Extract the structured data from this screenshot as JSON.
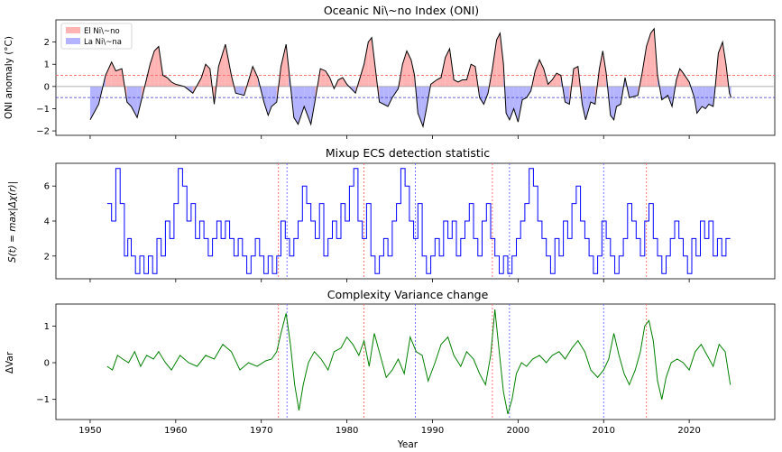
{
  "chart_data": [
    {
      "type": "area",
      "title": "Oceanic Ni\\~no Index (ONI)",
      "ylabel": "ONI anomaly ($^\\circ$C)",
      "xlim": [
        1946,
        2030
      ],
      "ylim": [
        -2.2,
        3.0
      ],
      "yticks": [
        -2,
        -1,
        0,
        1,
        2
      ],
      "thresholds": [
        0.5,
        -0.5
      ],
      "legend": {
        "placement": "top-left",
        "entries": [
          {
            "label": "El Ni\\~no",
            "color": "#ffb3b3"
          },
          {
            "label": "La Ni\\~na",
            "color": "#b3b3ff"
          }
        ]
      },
      "series": [
        {
          "x": [
            1950.0,
            1951.0,
            1951.8,
            1952.5,
            1953.0,
            1953.7,
            1954.3,
            1954.8,
            1955.5,
            1956.0,
            1957.0,
            1957.5,
            1958.0,
            1958.5,
            1959.0,
            1959.5,
            1960.0,
            1961.0,
            1962.0,
            1963.0,
            1963.5,
            1964.0,
            1964.5,
            1965.0,
            1965.8,
            1966.5,
            1967.0,
            1968.0,
            1969.0,
            1969.6,
            1970.3,
            1970.8,
            1971.2,
            1971.8,
            1972.3,
            1972.9,
            1973.2,
            1973.8,
            1974.3,
            1975.0,
            1975.8,
            1976.3,
            1976.9,
            1977.5,
            1978.0,
            1978.5,
            1979.0,
            1979.5,
            1980.0,
            1981.0,
            1982.0,
            1982.5,
            1982.9,
            1983.3,
            1983.8,
            1984.3,
            1984.8,
            1985.3,
            1986.0,
            1986.5,
            1987.0,
            1987.5,
            1987.9,
            1988.3,
            1988.7,
            1988.9,
            1989.3,
            1989.8,
            1990.5,
            1991.0,
            1991.5,
            1992.0,
            1992.5,
            1993.0,
            1993.5,
            1994.0,
            1994.5,
            1995.0,
            1995.5,
            1996.0,
            1996.5,
            1997.0,
            1997.5,
            1997.9,
            1998.3,
            1998.6,
            1999.0,
            1999.5,
            2000.0,
            2000.5,
            2001.0,
            2001.5,
            2002.0,
            2002.5,
            2003.0,
            2003.5,
            2004.0,
            2004.5,
            2005.0,
            2005.5,
            2006.0,
            2006.5,
            2007.0,
            2007.5,
            2007.9,
            2008.5,
            2009.0,
            2009.5,
            2009.9,
            2010.3,
            2010.8,
            2011.2,
            2011.5,
            2012.0,
            2012.5,
            2013.0,
            2014.0,
            2014.5,
            2015.0,
            2015.5,
            2015.9,
            2016.3,
            2016.8,
            2017.5,
            2018.0,
            2018.5,
            2018.9,
            2019.3,
            2020.0,
            2020.6,
            2020.9,
            2021.5,
            2021.9,
            2022.3,
            2022.8,
            2023.0,
            2023.4,
            2023.9,
            2024.3,
            2024.7,
            2024.9
          ],
          "values": [
            -1.5,
            -0.8,
            0.5,
            1.1,
            0.7,
            0.8,
            -0.7,
            -0.9,
            -1.4,
            -0.6,
            1.0,
            1.6,
            1.8,
            0.5,
            0.4,
            0.2,
            0.1,
            0.0,
            -0.3,
            0.4,
            1.0,
            0.8,
            -0.8,
            0.9,
            1.9,
            0.5,
            -0.3,
            -0.4,
            0.9,
            0.4,
            -0.7,
            -1.3,
            -0.9,
            -0.7,
            0.9,
            1.9,
            0.8,
            -1.4,
            -1.7,
            -0.9,
            -1.7,
            -0.6,
            0.8,
            0.7,
            0.4,
            -0.1,
            0.3,
            0.4,
            0.1,
            -0.3,
            1.0,
            2.0,
            2.2,
            0.9,
            -0.7,
            -0.8,
            -0.9,
            -0.5,
            -0.1,
            1.0,
            1.6,
            1.2,
            0.5,
            -1.2,
            -1.6,
            -1.8,
            -1.0,
            0.1,
            0.3,
            0.4,
            1.3,
            1.7,
            0.3,
            0.2,
            0.3,
            0.3,
            1.0,
            0.9,
            -0.5,
            -0.8,
            -0.3,
            0.8,
            2.1,
            2.4,
            1.0,
            -1.2,
            -1.5,
            -1.0,
            -1.6,
            -0.6,
            -0.5,
            -0.2,
            0.7,
            1.2,
            0.8,
            0.1,
            0.3,
            0.6,
            0.5,
            -0.7,
            -0.8,
            0.8,
            0.9,
            -0.8,
            -1.5,
            -0.7,
            -0.8,
            0.8,
            1.6,
            0.6,
            -1.3,
            -1.5,
            -0.9,
            -0.8,
            0.4,
            -0.5,
            -0.4,
            0.6,
            1.8,
            2.4,
            2.6,
            0.5,
            -0.6,
            -0.4,
            -0.9,
            0.3,
            0.8,
            0.6,
            0.2,
            -0.5,
            -1.2,
            -0.9,
            -1.0,
            -0.8,
            -0.9,
            -0.2,
            1.5,
            2.0,
            1.0,
            -0.3,
            -0.5
          ]
        }
      ]
    },
    {
      "type": "line",
      "title": "Mixup ECS detection statistic",
      "ylabel": "$S(t) = \\max_{\\mathcal{S}}|\\Delta\\chi(r)|$",
      "xlim": [
        1946,
        2030
      ],
      "ylim": [
        0.7,
        7.3
      ],
      "yticks": [
        2,
        4,
        6
      ],
      "red_markers": [
        1972.0,
        1982.0,
        1997.0,
        2015.0
      ],
      "blue_markers": [
        1973.0,
        1988.0,
        1999.0,
        2010.0
      ],
      "series": [
        {
          "color": "#0000ff",
          "x": [
            1952.0,
            1952.5,
            1953.0,
            1953.5,
            1954.0,
            1954.4,
            1954.8,
            1955.3,
            1955.8,
            1956.3,
            1956.8,
            1957.3,
            1957.8,
            1958.3,
            1958.8,
            1959.3,
            1959.8,
            1960.3,
            1960.8,
            1961.3,
            1961.8,
            1962.3,
            1962.8,
            1963.3,
            1963.8,
            1964.3,
            1964.8,
            1965.3,
            1965.8,
            1966.3,
            1966.8,
            1967.3,
            1967.8,
            1968.3,
            1968.8,
            1969.3,
            1969.8,
            1970.3,
            1970.8,
            1971.3,
            1971.8,
            1972.3,
            1972.8,
            1973.3,
            1973.8,
            1974.3,
            1974.8,
            1975.3,
            1975.8,
            1976.3,
            1976.8,
            1977.3,
            1977.8,
            1978.3,
            1978.8,
            1979.3,
            1979.8,
            1980.3,
            1980.8,
            1981.3,
            1981.8,
            1982.3,
            1982.8,
            1983.3,
            1983.8,
            1984.3,
            1984.8,
            1985.3,
            1985.8,
            1986.3,
            1986.8,
            1987.3,
            1987.8,
            1988.3,
            1988.8,
            1989.3,
            1989.8,
            1990.3,
            1990.8,
            1991.3,
            1991.8,
            1992.3,
            1992.8,
            1993.3,
            1993.8,
            1994.3,
            1994.8,
            1995.3,
            1995.8,
            1996.3,
            1996.8,
            1997.3,
            1997.8,
            1998.3,
            1998.8,
            1999.3,
            1999.8,
            2000.3,
            2000.8,
            2001.3,
            2001.8,
            2002.3,
            2002.8,
            2003.3,
            2003.8,
            2004.3,
            2004.8,
            2005.3,
            2005.8,
            2006.3,
            2006.8,
            2007.3,
            2007.8,
            2008.3,
            2008.8,
            2009.3,
            2009.8,
            2010.3,
            2010.8,
            2011.3,
            2011.8,
            2012.3,
            2012.8,
            2013.3,
            2013.8,
            2014.3,
            2014.8,
            2015.3,
            2015.8,
            2016.3,
            2016.8,
            2017.3,
            2017.8,
            2018.3,
            2018.8,
            2019.3,
            2019.8,
            2020.3,
            2020.8,
            2021.3,
            2021.8,
            2022.3,
            2022.8,
            2023.3,
            2023.8,
            2024.3,
            2024.8
          ],
          "values": [
            5,
            4,
            7,
            5,
            2,
            3,
            2,
            1,
            2,
            1,
            2,
            1,
            3,
            2,
            4,
            3,
            5,
            7,
            6,
            4,
            5,
            3,
            4,
            3,
            2,
            3,
            4,
            3,
            4,
            3,
            2,
            3,
            2,
            1,
            2,
            3,
            2,
            1,
            2,
            1,
            2,
            4,
            3,
            2,
            3,
            4,
            6,
            5,
            4,
            3,
            5,
            2,
            3,
            4,
            3,
            5,
            4,
            6,
            7,
            4,
            3,
            5,
            2,
            1,
            2,
            3,
            2,
            4,
            5,
            7,
            6,
            4,
            3,
            5,
            2,
            1,
            2,
            3,
            2,
            4,
            3,
            4,
            2,
            3,
            4,
            5,
            3,
            2,
            4,
            5,
            3,
            2,
            1,
            2,
            1,
            2,
            3,
            4,
            5,
            7,
            6,
            4,
            3,
            2,
            1,
            3,
            2,
            4,
            3,
            5,
            6,
            4,
            3,
            2,
            1,
            2,
            4,
            3,
            2,
            1,
            2,
            3,
            5,
            4,
            3,
            2,
            4,
            5,
            3,
            2,
            1,
            2,
            3,
            4,
            3,
            2,
            1,
            3,
            2,
            4,
            3,
            4,
            2,
            3,
            2,
            3,
            3
          ]
        }
      ]
    },
    {
      "type": "line",
      "title": "Complexity Variance change",
      "ylabel": "ΔVar",
      "xlabel": "Year",
      "xlim": [
        1946,
        2030
      ],
      "ylim": [
        -1.55,
        1.6
      ],
      "yticks": [
        -1,
        0,
        1
      ],
      "xticks": [
        1950,
        1960,
        1970,
        1980,
        1990,
        2000,
        2010,
        2020
      ],
      "red_markers": [
        1972.0,
        1982.0,
        1997.0,
        2015.0
      ],
      "blue_markers": [
        1973.0,
        1988.0,
        1999.0,
        2010.0
      ],
      "series": [
        {
          "color": "#008000",
          "x": [
            1952.0,
            1952.6,
            1953.2,
            1953.8,
            1954.5,
            1955.2,
            1955.9,
            1956.6,
            1957.4,
            1958.0,
            1958.8,
            1959.5,
            1960.5,
            1961.5,
            1962.5,
            1963.5,
            1964.5,
            1965.5,
            1966.5,
            1967.5,
            1968.5,
            1969.5,
            1970.5,
            1971.2,
            1971.8,
            1972.3,
            1972.9,
            1973.4,
            1973.9,
            1974.4,
            1974.9,
            1975.5,
            1976.2,
            1977.0,
            1977.8,
            1978.5,
            1979.3,
            1980.0,
            1980.7,
            1981.4,
            1982.0,
            1982.6,
            1983.2,
            1983.9,
            1984.6,
            1985.3,
            1986.0,
            1986.7,
            1987.4,
            1988.1,
            1988.8,
            1989.5,
            1990.3,
            1991.0,
            1991.8,
            1992.5,
            1993.3,
            1994.0,
            1994.8,
            1995.5,
            1996.2,
            1996.8,
            1997.3,
            1997.8,
            1998.3,
            1998.8,
            1999.3,
            1999.8,
            2000.4,
            2001.0,
            2001.7,
            2002.5,
            2003.3,
            2004.0,
            2004.8,
            2005.5,
            2006.3,
            2007.0,
            2007.8,
            2008.5,
            2009.3,
            2010.0,
            2010.6,
            2011.2,
            2011.8,
            2012.4,
            2013.0,
            2013.7,
            2014.3,
            2014.8,
            2015.3,
            2015.8,
            2016.3,
            2016.8,
            2017.3,
            2017.9,
            2018.6,
            2019.3,
            2020.0,
            2020.7,
            2021.4,
            2022.1,
            2022.8,
            2023.5,
            2024.2,
            2024.8
          ],
          "values": [
            -0.1,
            -0.2,
            0.2,
            0.1,
            0.0,
            0.3,
            -0.1,
            0.2,
            0.1,
            0.3,
            0.0,
            -0.2,
            0.2,
            0.0,
            -0.1,
            0.2,
            0.1,
            0.5,
            0.3,
            -0.2,
            0.0,
            -0.1,
            0.05,
            0.1,
            0.3,
            0.8,
            1.35,
            0.5,
            -0.6,
            -1.3,
            -0.6,
            0.0,
            0.3,
            0.1,
            -0.2,
            0.3,
            0.4,
            0.7,
            0.5,
            0.2,
            0.6,
            -0.1,
            0.8,
            0.2,
            -0.4,
            -0.2,
            0.1,
            -0.3,
            0.7,
            0.3,
            0.2,
            -0.5,
            0.0,
            0.5,
            0.7,
            0.2,
            -0.1,
            0.3,
            0.1,
            -0.3,
            -0.6,
            0.2,
            1.45,
            0.3,
            -0.8,
            -1.4,
            -1.0,
            -0.3,
            0.0,
            -0.1,
            0.1,
            0.2,
            0.0,
            0.2,
            0.3,
            0.1,
            0.4,
            0.6,
            0.3,
            -0.2,
            -0.4,
            -0.2,
            0.1,
            0.8,
            0.2,
            -0.3,
            -0.6,
            -0.2,
            0.3,
            1.0,
            1.15,
            0.6,
            -0.5,
            -1.0,
            -0.4,
            0.0,
            0.1,
            0.0,
            -0.2,
            0.3,
            0.5,
            0.2,
            -0.1,
            0.5,
            0.3,
            -0.6
          ]
        }
      ]
    }
  ]
}
